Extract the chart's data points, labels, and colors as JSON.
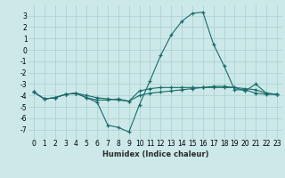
{
  "xlabel": "Humidex (Indice chaleur)",
  "bg_color": "#cce8e8",
  "grid_color": "#aacfcf",
  "line_color": "#1a6b6b",
  "x": [
    0,
    1,
    2,
    3,
    4,
    5,
    6,
    7,
    8,
    9,
    10,
    11,
    12,
    13,
    14,
    15,
    16,
    17,
    18,
    19,
    20,
    21,
    22,
    23
  ],
  "line1": [
    -3.7,
    -4.3,
    -4.2,
    -3.9,
    -3.8,
    -4.2,
    -4.6,
    -6.6,
    -6.8,
    -7.2,
    -4.8,
    -2.7,
    -0.5,
    1.3,
    2.5,
    3.2,
    3.3,
    0.5,
    -1.4,
    -3.5,
    -3.5,
    -3.8,
    -3.9,
    -3.9
  ],
  "line2": [
    -3.7,
    -4.3,
    -4.2,
    -3.9,
    -3.8,
    -4.2,
    -4.4,
    -4.4,
    -4.3,
    -4.5,
    -3.6,
    -3.4,
    -3.3,
    -3.3,
    -3.3,
    -3.3,
    -3.3,
    -3.3,
    -3.3,
    -3.3,
    -3.6,
    -3.0,
    -3.8,
    -3.9
  ],
  "line3": [
    -3.7,
    -4.3,
    -4.2,
    -3.9,
    -3.8,
    -4.0,
    -4.2,
    -4.3,
    -4.4,
    -4.5,
    -4.0,
    -3.8,
    -3.7,
    -3.6,
    -3.5,
    -3.4,
    -3.3,
    -3.2,
    -3.2,
    -3.3,
    -3.4,
    -3.5,
    -3.8,
    -3.9
  ],
  "xlim": [
    -0.5,
    23.5
  ],
  "ylim": [
    -7.8,
    3.9
  ],
  "yticks": [
    3,
    2,
    1,
    0,
    -1,
    -2,
    -3,
    -4,
    -5,
    -6,
    -7
  ],
  "xticks": [
    0,
    1,
    2,
    3,
    4,
    5,
    6,
    7,
    8,
    9,
    10,
    11,
    12,
    13,
    14,
    15,
    16,
    17,
    18,
    19,
    20,
    21,
    22,
    23
  ],
  "xlabel_fontsize": 6.0,
  "tick_fontsize": 5.5
}
